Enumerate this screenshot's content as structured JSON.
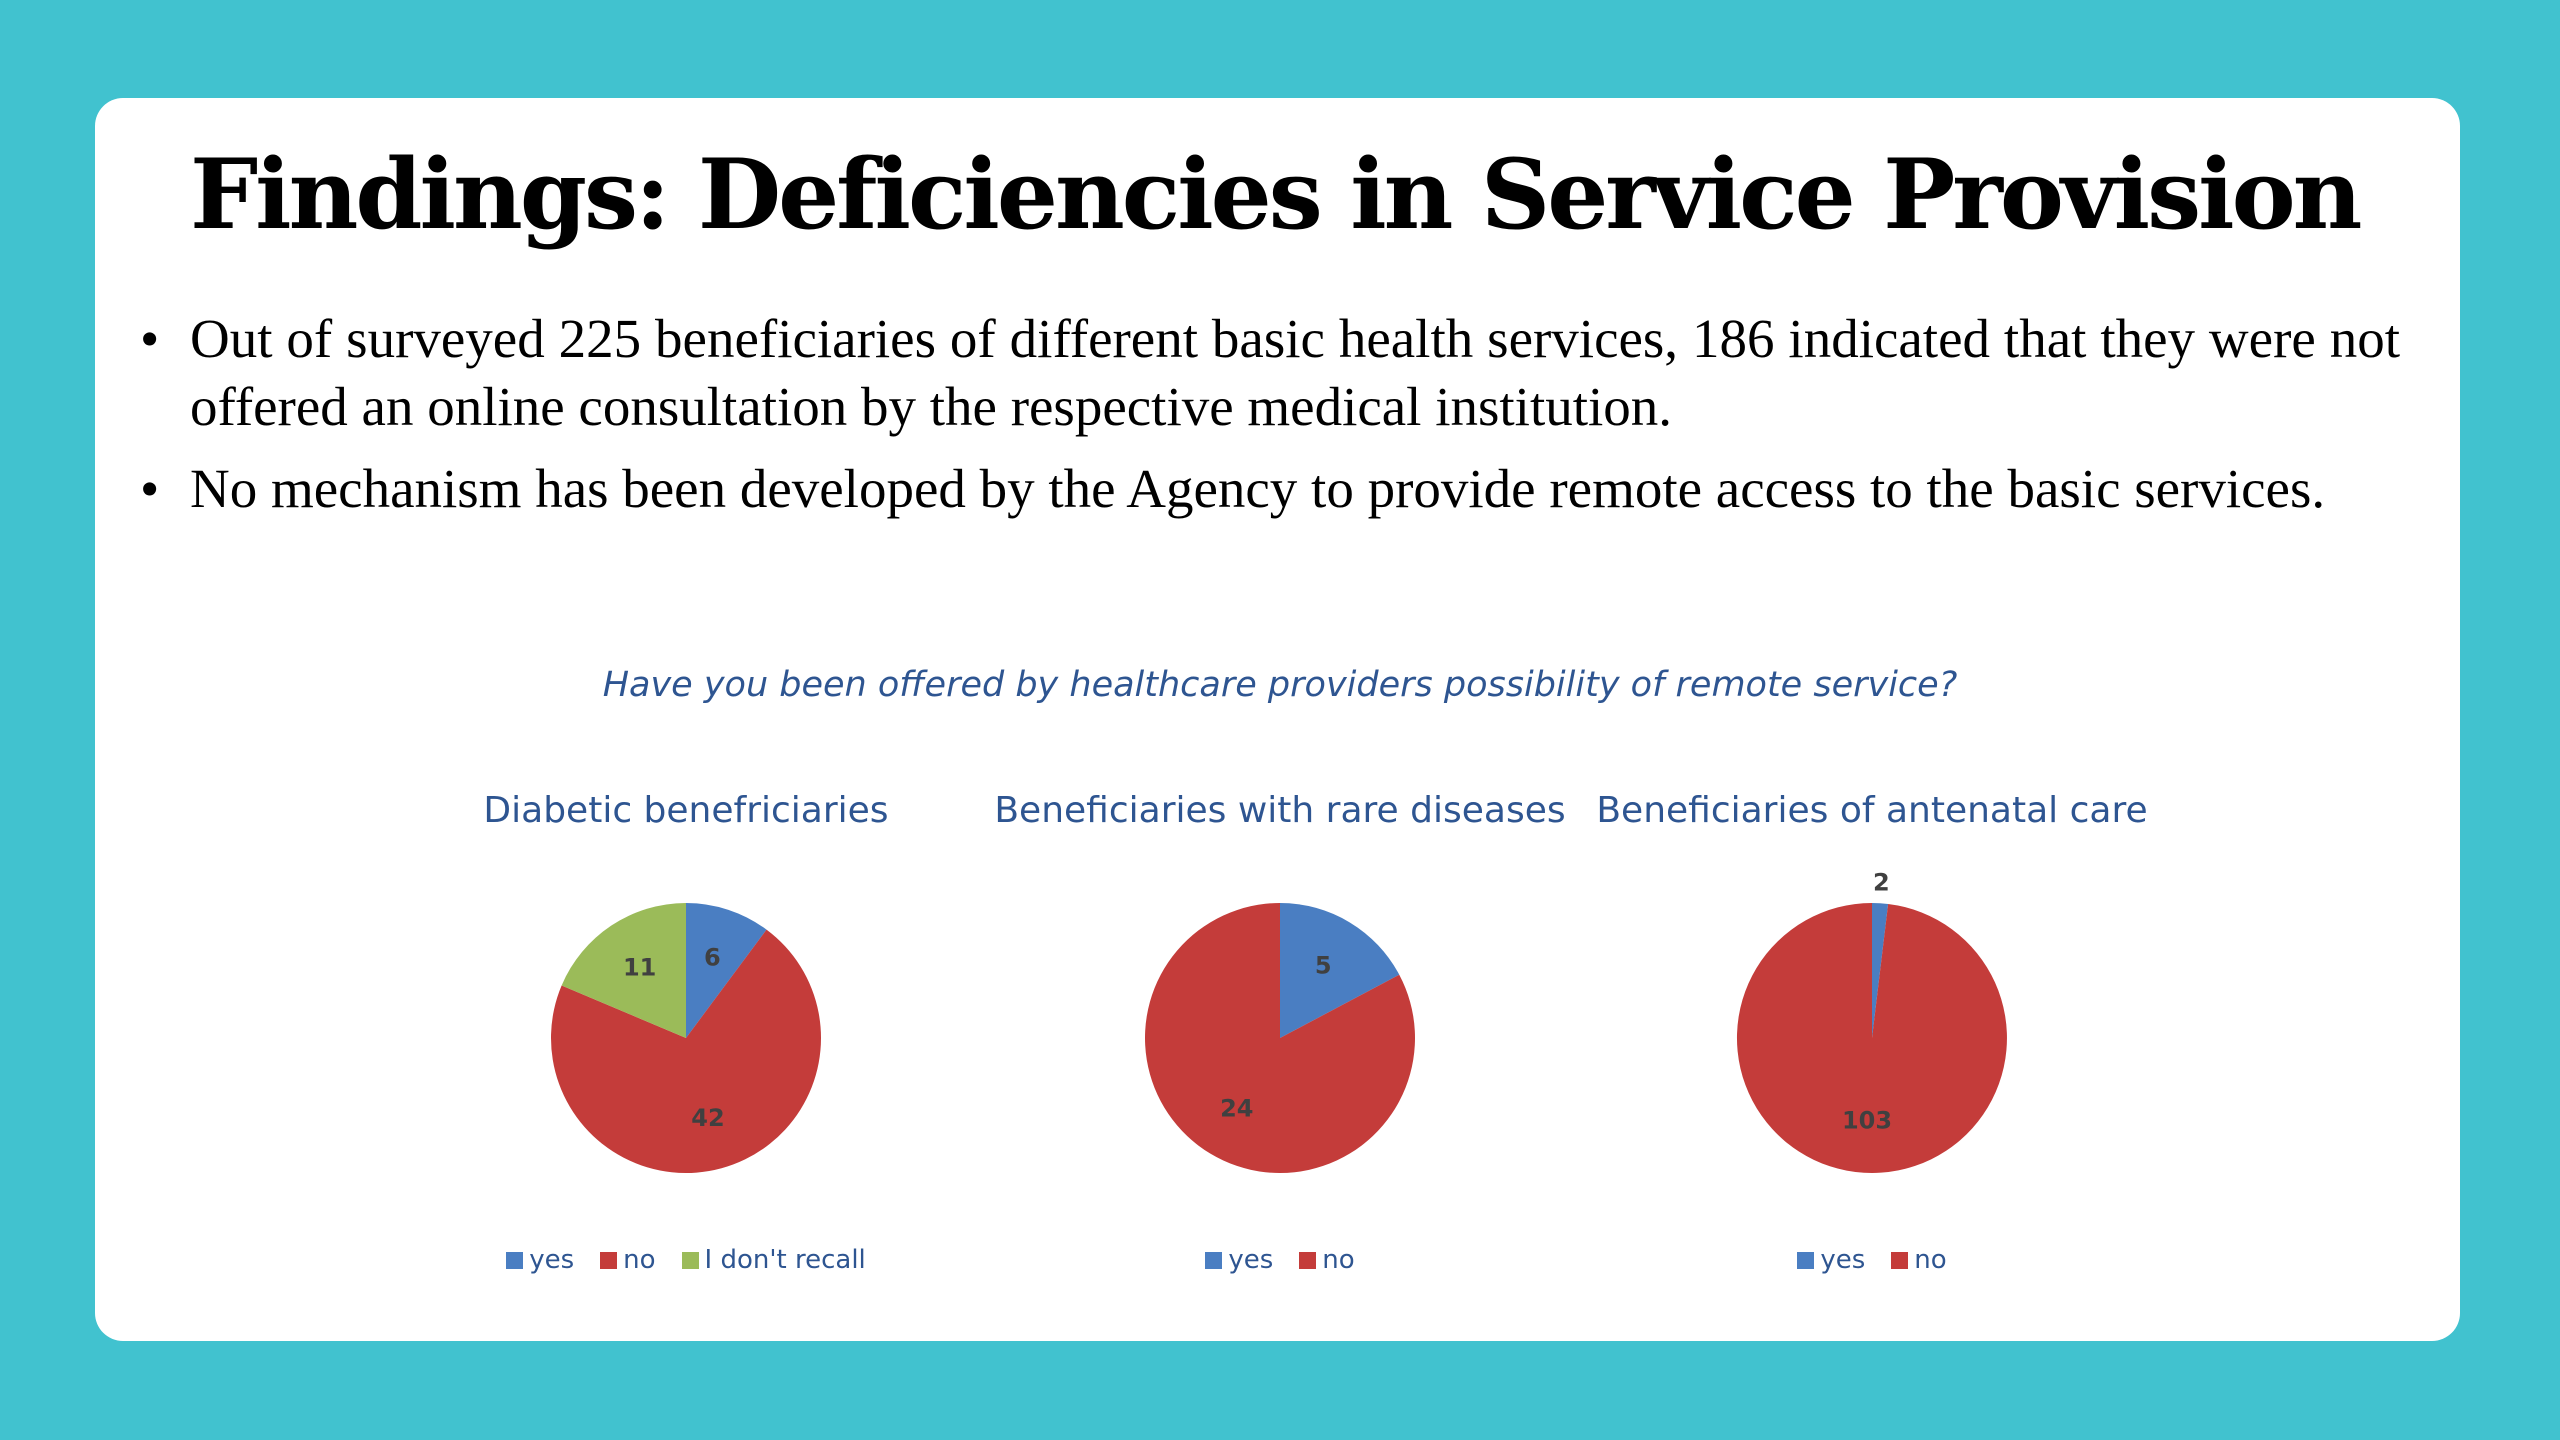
{
  "slide": {
    "title": "Findings: Deficiencies in Service Provision",
    "bullets": [
      "Out of surveyed 225 beneficiaries of different basic health services, 186 indicated that they were not offered an online consultation  by the respective medical institution.",
      "No mechanism has been developed by the Agency to provide remote access to the basic services."
    ],
    "bullet_symbol": "•"
  },
  "chart_question": "Have you been offered by healthcare providers possibility of remote service?",
  "colors": {
    "background": "#41c2cf",
    "card": "#ffffff",
    "chart_text": "#2e5591",
    "yes": "#4a7ec2",
    "no": "#c43c3a",
    "dont_recall": "#9bbb59"
  },
  "chart_data": [
    {
      "type": "pie",
      "title": "Diabetic benefriciaries",
      "categories": [
        "yes",
        "no",
        "I don't recall"
      ],
      "values": [
        6,
        42,
        11
      ],
      "colors": [
        "#4a7ec2",
        "#c43c3a",
        "#9bbb59"
      ],
      "legend": "bottom"
    },
    {
      "type": "pie",
      "title": "Beneficiaries with rare diseases",
      "categories": [
        "yes",
        "no"
      ],
      "values": [
        5,
        24
      ],
      "colors": [
        "#4a7ec2",
        "#c43c3a"
      ],
      "legend": "bottom"
    },
    {
      "type": "pie",
      "title": "Beneficiaries of antenatal care",
      "categories": [
        "yes",
        "no"
      ],
      "values": [
        2,
        103
      ],
      "colors": [
        "#4a7ec2",
        "#c43c3a"
      ],
      "legend": "bottom"
    }
  ]
}
